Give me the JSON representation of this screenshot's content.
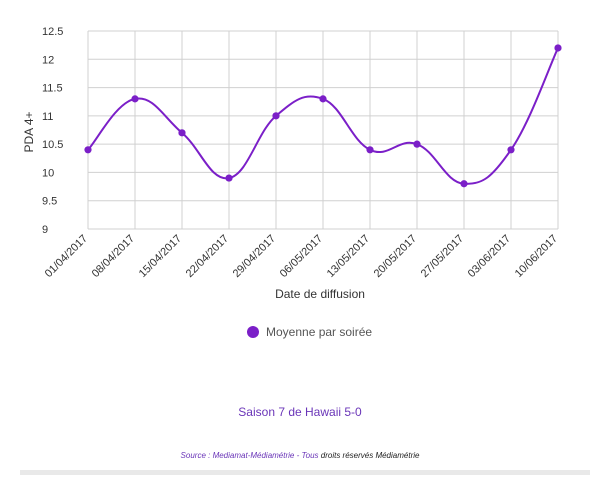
{
  "chart_data": {
    "type": "line",
    "xlabel": "Date de diffusion",
    "ylabel": "PDA 4+",
    "ylim": [
      9,
      12.5
    ],
    "yticks": [
      "9",
      "9.5",
      "10",
      "10.5",
      "11",
      "11.5",
      "12",
      "12.5"
    ],
    "categories": [
      "01/04/2017",
      "08/04/2017",
      "15/04/2017",
      "22/04/2017",
      "29/04/2017",
      "06/05/2017",
      "13/05/2017",
      "20/05/2017",
      "27/05/2017",
      "03/06/2017",
      "10/06/2017"
    ],
    "series": [
      {
        "name": "Moyenne par soirée",
        "values": [
          10.4,
          11.3,
          10.7,
          9.9,
          11.0,
          11.3,
          10.4,
          10.5,
          9.8,
          10.4,
          12.2
        ],
        "color": "#7b1fc8"
      }
    ],
    "grid": true,
    "legend_position": "bottom"
  },
  "subtitle": "Saison 7 de Hawaii 5-0",
  "source": {
    "prefix": "Source : ",
    "link": "Mediamat-Médiamétrie - Tous",
    "suffix": " droits réservés Médiamétrie"
  }
}
